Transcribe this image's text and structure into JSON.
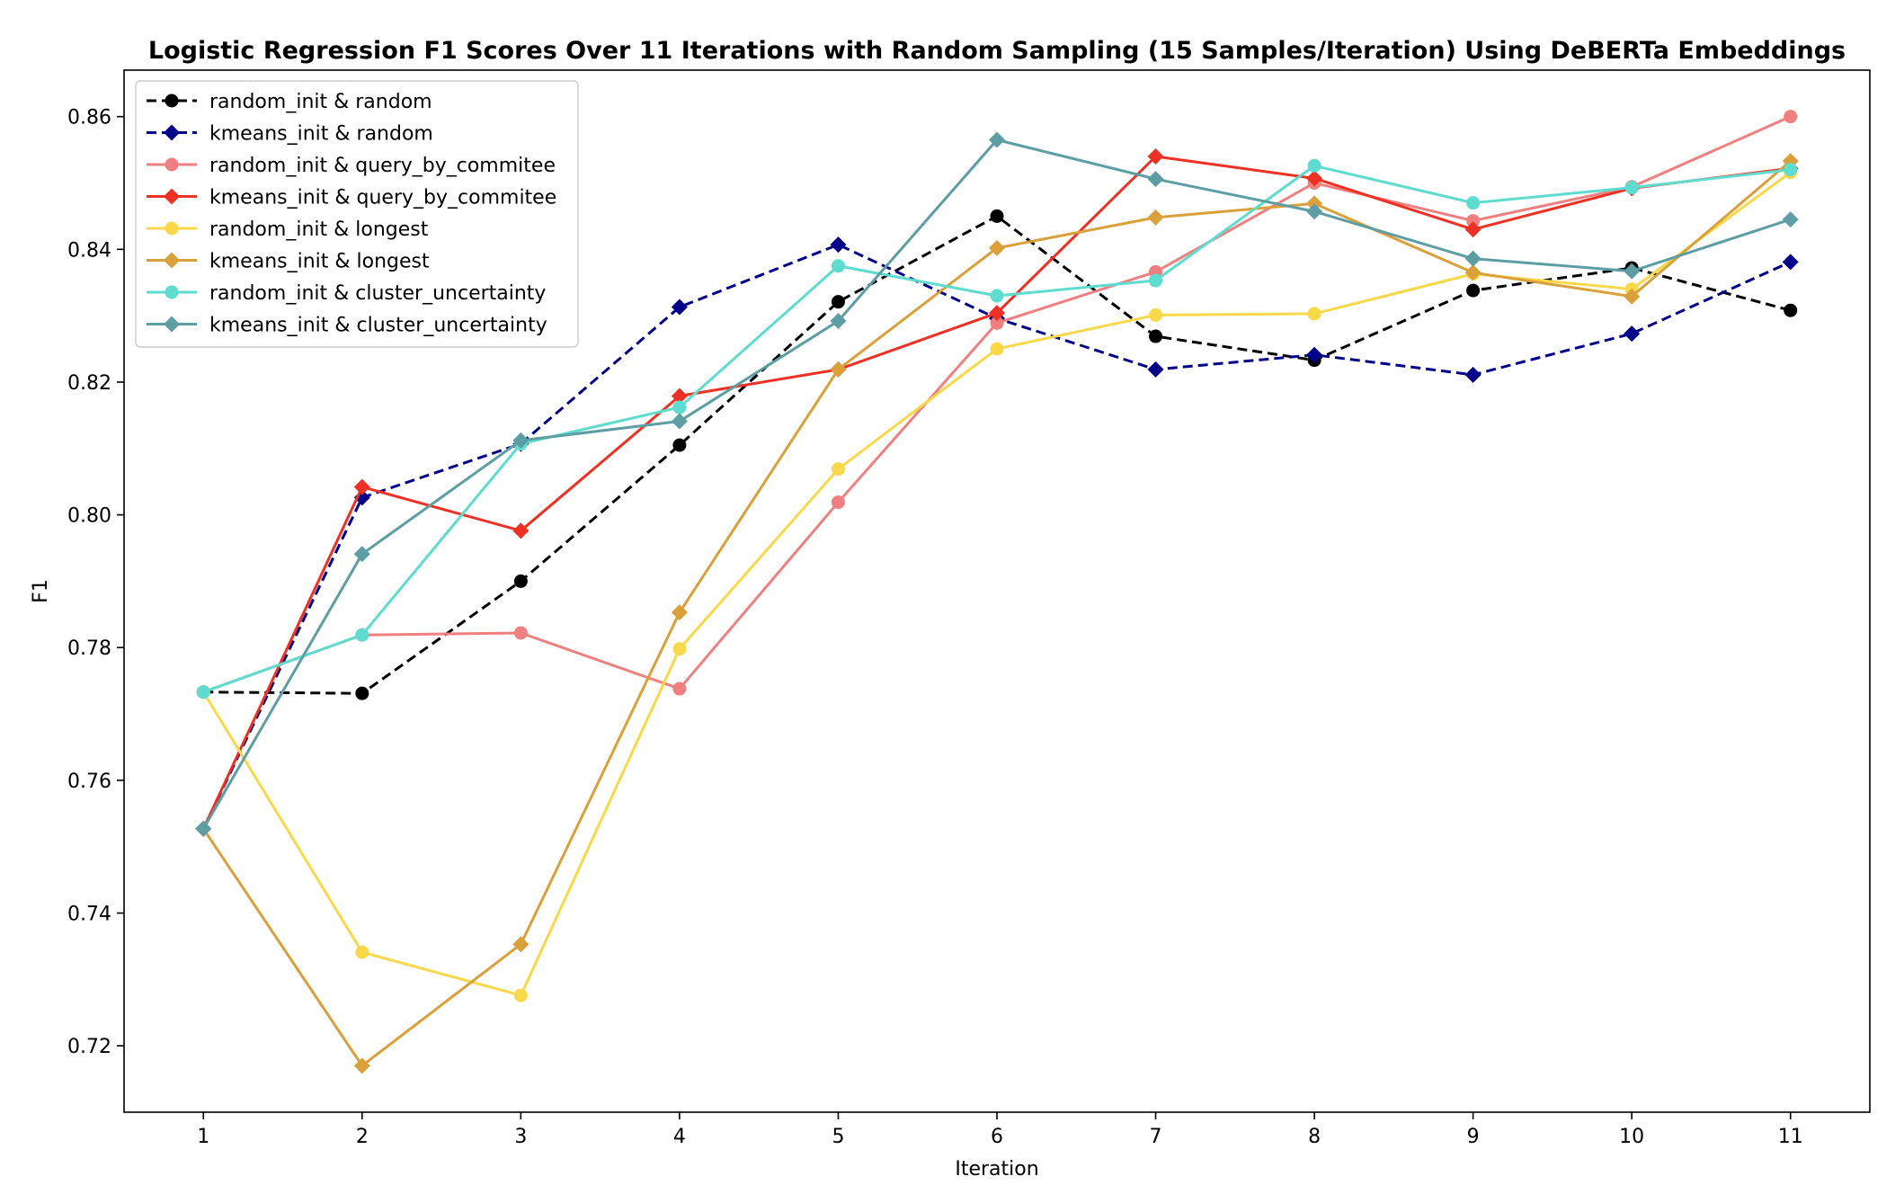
{
  "chart_data": {
    "type": "line",
    "title": "Logistic Regression F1 Scores Over 11 Iterations with Random Sampling (15 Samples/Iteration) Using DeBERTa Embeddings",
    "xlabel": "Iteration",
    "ylabel": "F1",
    "x": [
      1,
      2,
      3,
      4,
      5,
      6,
      7,
      8,
      9,
      10,
      11
    ],
    "xlim": [
      0.5,
      11.5
    ],
    "ylim": [
      0.71,
      0.867
    ],
    "yticks": [
      "0.72",
      "0.74",
      "0.76",
      "0.78",
      "0.80",
      "0.82",
      "0.84",
      "0.86"
    ],
    "xticks": [
      "1",
      "2",
      "3",
      "4",
      "5",
      "6",
      "7",
      "8",
      "9",
      "10",
      "11"
    ],
    "grid": false,
    "legend_position": "top-left",
    "series": [
      {
        "name": "random_init & random",
        "color": "#000000",
        "dashed": true,
        "marker": "circle",
        "values": [
          0.7733,
          0.7731,
          0.79,
          0.8105,
          0.8321,
          0.845,
          0.8269,
          0.8233,
          0.8338,
          0.8372,
          0.8308
        ]
      },
      {
        "name": "kmeans_init & random",
        "color": "#00008B",
        "dashed": true,
        "marker": "diamond",
        "values": [
          0.7527,
          0.8026,
          0.8107,
          0.8313,
          0.8407,
          0.8296,
          0.8219,
          0.8241,
          0.8211,
          0.8273,
          0.8381
        ]
      },
      {
        "name": "random_init & query_by_commitee",
        "color": "#F08080",
        "dashed": false,
        "marker": "circle",
        "values": [
          0.7733,
          0.7819,
          0.7822,
          0.7738,
          0.8019,
          0.8289,
          0.8366,
          0.85,
          0.8443,
          0.8494,
          0.86
        ]
      },
      {
        "name": "kmeans_init & query_by_commitee",
        "color": "#EE3124",
        "dashed": false,
        "marker": "diamond",
        "values": [
          0.7527,
          0.8042,
          0.7976,
          0.8179,
          0.8219,
          0.8304,
          0.854,
          0.8507,
          0.843,
          0.8492,
          0.8522
        ]
      },
      {
        "name": "random_init & longest",
        "color": "#F9D84A",
        "dashed": false,
        "marker": "circle",
        "values": [
          0.7733,
          0.7341,
          0.7276,
          0.7798,
          0.8069,
          0.825,
          0.8301,
          0.8303,
          0.8363,
          0.834,
          0.8516
        ]
      },
      {
        "name": "kmeans_init & longest",
        "color": "#DAA03A",
        "dashed": false,
        "marker": "diamond",
        "values": [
          0.7527,
          0.717,
          0.7353,
          0.7853,
          0.8219,
          0.8402,
          0.8448,
          0.8469,
          0.8365,
          0.8329,
          0.8533
        ]
      },
      {
        "name": "random_init & cluster_uncertainty",
        "color": "#5FDCD0",
        "dashed": false,
        "marker": "circle",
        "values": [
          0.7733,
          0.7819,
          0.8107,
          0.8162,
          0.8375,
          0.833,
          0.8353,
          0.8526,
          0.847,
          0.8493,
          0.852
        ]
      },
      {
        "name": "kmeans_init & cluster_uncertainty",
        "color": "#5C9EA3",
        "dashed": false,
        "marker": "diamond",
        "values": [
          0.7527,
          0.7941,
          0.8112,
          0.8141,
          0.8292,
          0.8565,
          0.8506,
          0.8457,
          0.8386,
          0.8367,
          0.8445
        ]
      }
    ]
  }
}
